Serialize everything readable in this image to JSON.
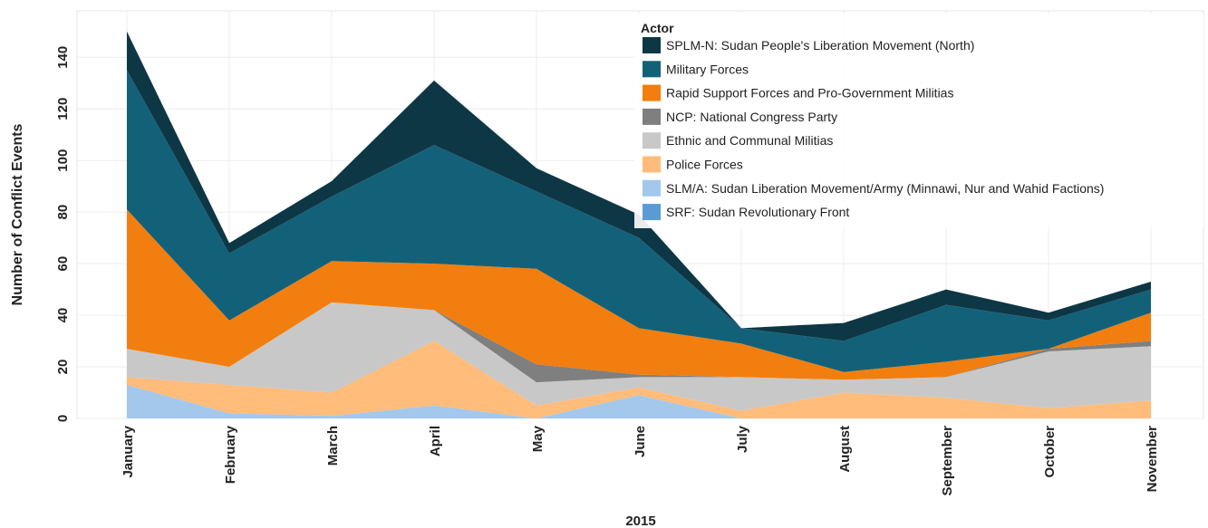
{
  "chart_data": {
    "type": "stacked_area",
    "x_label": "2015",
    "y_label": "Number of Conflict Events",
    "legend_title": "Actor",
    "categories": [
      "January",
      "February",
      "March",
      "April",
      "May",
      "June",
      "July",
      "August",
      "September",
      "October",
      "November"
    ],
    "series": [
      {
        "name": "SPLM-N: Sudan People's Liberation Movement (North)",
        "color": "#0e3745",
        "values": [
          15,
          4,
          6,
          25,
          9,
          9,
          0,
          7,
          6,
          3,
          3
        ]
      },
      {
        "name": "Military Forces",
        "color": "#136178",
        "values": [
          54,
          26,
          25,
          46,
          30,
          35,
          6,
          12,
          22,
          11,
          9
        ]
      },
      {
        "name": "Rapid Support Forces and Pro-Government Militias",
        "color": "#f27e0f",
        "values": [
          54,
          18,
          16,
          18,
          37,
          18,
          13,
          3,
          6,
          0,
          11
        ]
      },
      {
        "name": "NCP: National Congress Party",
        "color": "#7f7f7f",
        "values": [
          0,
          0,
          0,
          0,
          7,
          1,
          0,
          0,
          0,
          1,
          2
        ]
      },
      {
        "name": "Ethnic and Communal Militias",
        "color": "#c8c8c8",
        "values": [
          11,
          7,
          35,
          12,
          9,
          4,
          13,
          5,
          8,
          22,
          21
        ]
      },
      {
        "name": "Police Forces",
        "color": "#ffbc7a",
        "values": [
          3,
          11,
          9,
          25,
          5,
          3,
          3,
          10,
          8,
          4,
          7
        ]
      },
      {
        "name": "SLM/A: Sudan Liberation Movement/Army (Minnawi, Nur and Wahid Factions)",
        "color": "#a3c8ec",
        "values": [
          13,
          2,
          1,
          5,
          0,
          9,
          0,
          0,
          0,
          0,
          0
        ]
      },
      {
        "name": "SRF: Sudan Revolutionary Front",
        "color": "#5b9bd5",
        "values": [
          0,
          0,
          0,
          0,
          0,
          0,
          0,
          0,
          0,
          0,
          0
        ]
      }
    ],
    "ylim": [
      0,
      158
    ],
    "yticks": [
      0,
      20,
      40,
      60,
      80,
      100,
      120,
      140
    ],
    "grid": true
  }
}
